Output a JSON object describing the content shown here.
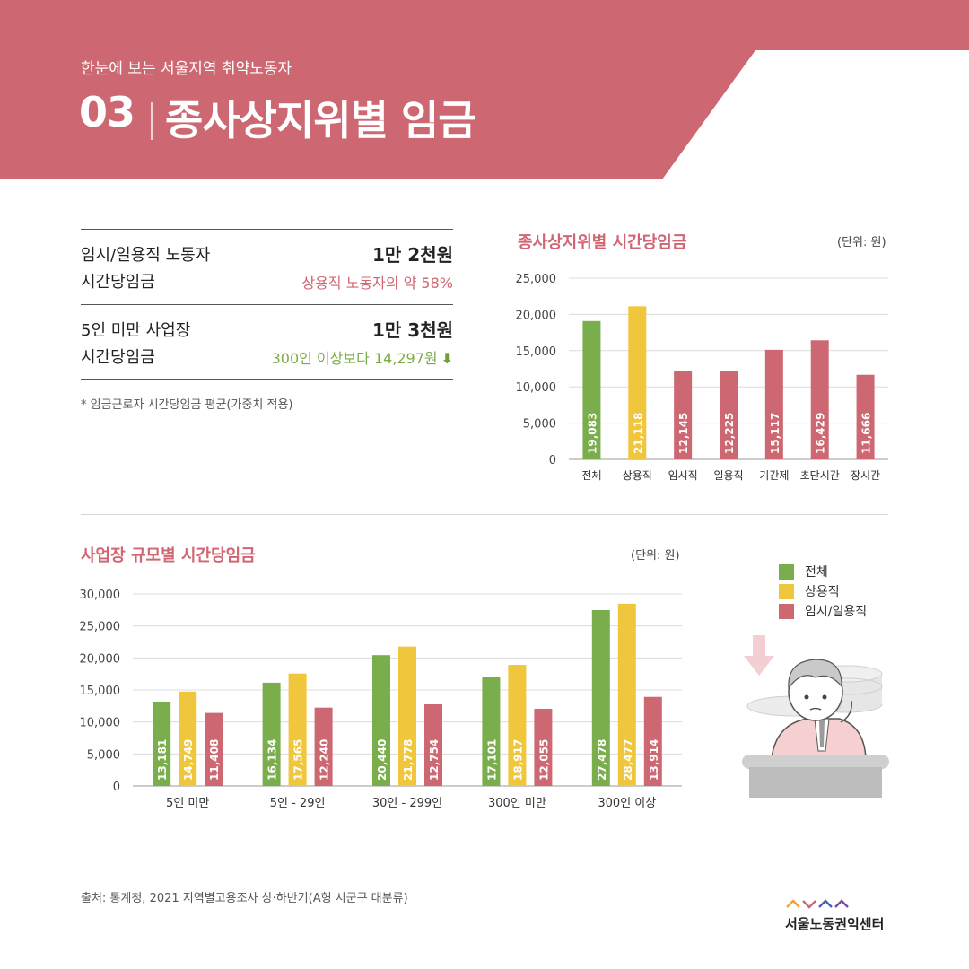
{
  "header": {
    "subtitle": "한눈에 보는 서울지역 취약노동자",
    "number": "03",
    "title": "종사상지위별 임금"
  },
  "summary": {
    "rows": [
      {
        "label_line1": "임시/일용직 노동자",
        "label_line2": "시간당임금",
        "value": "1만 2천원",
        "note": "상용직 노동자의 약 58%"
      },
      {
        "label_line1": "5인 미만 사업장",
        "label_line2": "시간당임금",
        "value": "1만 3천원",
        "note": "300인 이상보다 14,297원"
      }
    ],
    "footnote": "* 임금근로자 시간당임금 평균(가중치 적용)"
  },
  "colors": {
    "header": "#cd6873",
    "green": "#7aad4c",
    "yellow": "#efc63c",
    "pink": "#cd6873"
  },
  "chart1_header": {
    "title": "종사상지위별 시간당임금",
    "unit": "(단위: 원)"
  },
  "chart2_header": {
    "title": "사업장 규모별 시간당임금",
    "unit": "(단위: 원)"
  },
  "legend": [
    {
      "label": "전체",
      "color": "#7aad4c"
    },
    {
      "label": "상용직",
      "color": "#efc63c"
    },
    {
      "label": "임시/일용직",
      "color": "#cd6873"
    }
  ],
  "chart_data": [
    {
      "type": "bar",
      "title": "종사상지위별 시간당임금",
      "unit": "(단위: 원)",
      "categories": [
        "전체",
        "상용직",
        "임시직",
        "일용직",
        "기간제",
        "초단시간",
        "장시간"
      ],
      "values": [
        19083,
        21118,
        12145,
        12225,
        15117,
        16429,
        11666
      ],
      "value_labels": [
        "19,083",
        "21,118",
        "12,145",
        "12,225",
        "15,117",
        "16,429",
        "11,666"
      ],
      "colors": [
        "#7aad4c",
        "#efc63c",
        "#cd6873",
        "#cd6873",
        "#cd6873",
        "#cd6873",
        "#cd6873"
      ],
      "yticks": [
        "0",
        "5,000",
        "10,000",
        "15,000",
        "20,000",
        "25,000"
      ],
      "ylim": [
        0,
        25000
      ],
      "grid": true
    },
    {
      "type": "bar",
      "title": "사업장 규모별 시간당임금",
      "unit": "(단위: 원)",
      "categories": [
        "5인 미만",
        "5인 - 29인",
        "30인 - 299인",
        "300인 미만",
        "300인 이상"
      ],
      "series": [
        {
          "name": "전체",
          "color": "#7aad4c",
          "values": [
            13181,
            16134,
            20440,
            17101,
            27478
          ],
          "labels": [
            "13,181",
            "16,134",
            "20,440",
            "17,101",
            "27,478"
          ]
        },
        {
          "name": "상용직",
          "color": "#efc63c",
          "values": [
            14749,
            17565,
            21778,
            18917,
            28477
          ],
          "labels": [
            "14,749",
            "17,565",
            "21,778",
            "18,917",
            "28,477"
          ]
        },
        {
          "name": "임시/일용직",
          "color": "#cd6873",
          "values": [
            11408,
            12240,
            12754,
            12055,
            13914
          ],
          "labels": [
            "11,408",
            "12,240",
            "12,754",
            "12,055",
            "13,914"
          ]
        }
      ],
      "yticks": [
        "0",
        "5,000",
        "10,000",
        "15,000",
        "20,000",
        "25,000",
        "30,000"
      ],
      "ylim": [
        0,
        30000
      ],
      "grid": true,
      "legend": "right"
    }
  ],
  "source": "출처: 통계청, 2021 지역별고용조사 상·하반기(A형 시군구 대분류)",
  "logo": {
    "name": "서울노동권익센터"
  }
}
